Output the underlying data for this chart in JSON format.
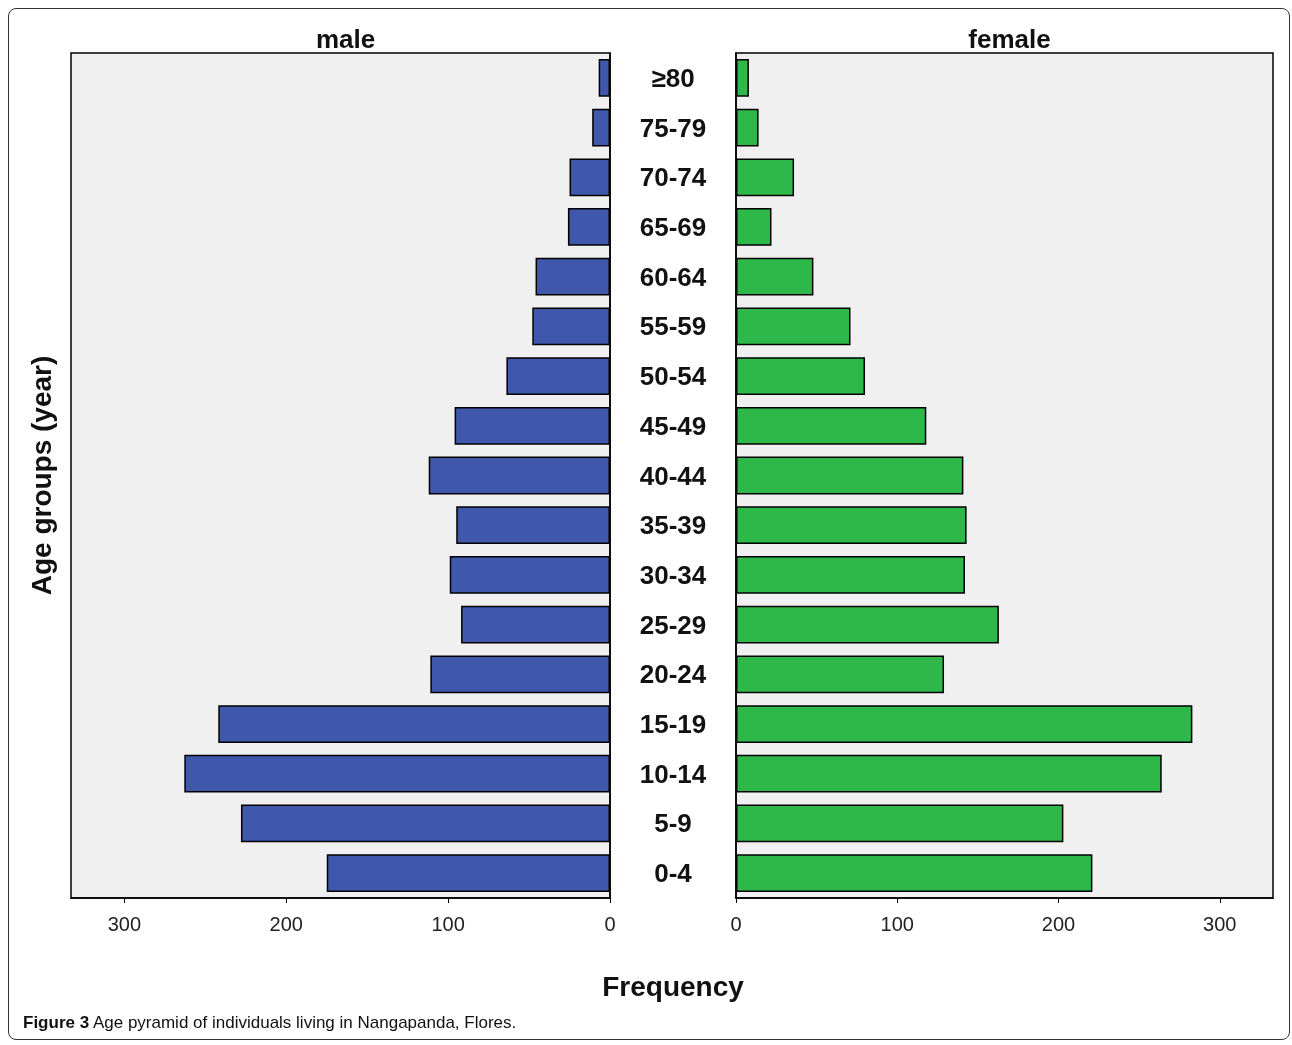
{
  "chart_data": [
    {
      "type": "bar",
      "orientation": "horizontal",
      "title": "male",
      "ylabel": "Age groups (year)",
      "values": [
        7,
        11,
        25,
        26,
        46,
        48,
        64,
        96,
        112,
        95,
        99,
        92,
        111,
        242,
        263,
        228,
        175
      ],
      "color": "#3f58ab",
      "xlim": [
        333,
        0
      ],
      "xticks": [
        300,
        200,
        100,
        0
      ],
      "tick_labels": "x"
    },
    {
      "type": "bar",
      "orientation": "horizontal",
      "title": "female",
      "xlabel": "Frequency",
      "categories": [
        "≥80",
        "75-79",
        "70-74",
        "65-69",
        "60-64",
        "55-59",
        "50-54",
        "45-49",
        "40-44",
        "35-39",
        "30-34",
        "25-29",
        "20-24",
        "15-19",
        "10-14",
        "5-9",
        "0-4"
      ],
      "values": [
        8,
        14,
        36,
        22,
        48,
        71,
        80,
        118,
        141,
        143,
        142,
        163,
        129,
        283,
        264,
        203,
        221
      ],
      "color": "#2eb84a",
      "xlim": [
        0,
        333
      ],
      "xticks": [
        0,
        100,
        200,
        300
      ],
      "annotations": [
        "Figure 3 Age pyramid of individuals living in Nangapanda, Flores."
      ]
    }
  ]
}
